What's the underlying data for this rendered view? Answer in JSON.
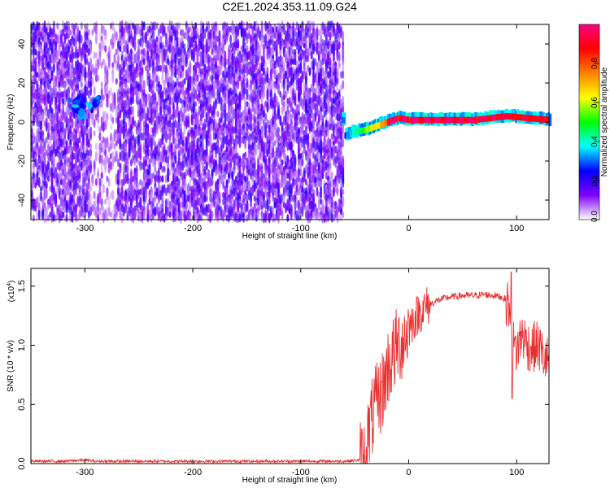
{
  "title": "C2E1.2024.353.11.09.G24",
  "chart_data": [
    {
      "type": "heatmap",
      "title": "C2E1.2024.353.11.09.G24",
      "xlabel": "Height of straight line (km)",
      "ylabel": "Frequency (Hz)",
      "xlim": [
        -350,
        130
      ],
      "ylim": [
        -50,
        50
      ],
      "xticks": [
        -300,
        -200,
        -100,
        0,
        100
      ],
      "yticks": [
        -40,
        -20,
        0,
        20,
        40
      ],
      "xtick_labels": [
        "-300",
        "-200",
        "-100",
        "0",
        "100"
      ],
      "ytick_labels": [
        "-40",
        "-20",
        "0",
        "20",
        "40"
      ],
      "colorbar": {
        "label": "Normalized spectral amplitude",
        "range": [
          0,
          1
        ],
        "ticks": [
          0.0,
          0.2,
          0.4,
          0.6,
          0.8
        ],
        "tick_labels": [
          "0.0",
          "0.2",
          "0.4",
          "0.6",
          "0.8"
        ],
        "colormap": [
          "#ffffff",
          "#8000ff",
          "#0000ff",
          "#00ffff",
          "#00ff00",
          "#ffff00",
          "#ff8000",
          "#ff0000",
          "#ff0080"
        ]
      },
      "features": {
        "noise_region_x": [
          -350,
          -60
        ],
        "blob": {
          "x": -300,
          "y": 8,
          "level": 0.3
        },
        "signal_track": [
          [
            -60,
            -7
          ],
          [
            -50,
            -5
          ],
          [
            -40,
            -4
          ],
          [
            -30,
            -2
          ],
          [
            -20,
            0
          ],
          [
            -10,
            2
          ],
          [
            0,
            1
          ],
          [
            10,
            1
          ],
          [
            30,
            1
          ],
          [
            60,
            1
          ],
          [
            90,
            3
          ],
          [
            130,
            1
          ]
        ]
      },
      "grid": false
    },
    {
      "type": "line",
      "xlabel": "Height of straight line (km)",
      "ylabel": "SNR (10 * v/v)",
      "y_multiplier": "(x10",
      "y_multiplier_exp": "4",
      "y_multiplier_close": ")",
      "xlim": [
        -350,
        130
      ],
      "ylim": [
        0,
        1.65
      ],
      "xticks": [
        -300,
        -200,
        -100,
        0,
        100
      ],
      "yticks": [
        0,
        0.5,
        1.0,
        1.5
      ],
      "xtick_labels": [
        "-300",
        "-200",
        "-100",
        "0",
        "100"
      ],
      "ytick_labels": [
        "0.0",
        "0.5",
        "1.0",
        "1.5"
      ],
      "color": "#e83030",
      "series": [
        {
          "x": [
            -350,
            -320,
            -300,
            -290,
            -250,
            -200,
            -150,
            -100,
            -60,
            -45,
            -40,
            -38,
            -35,
            -30,
            -25,
            -22,
            -20,
            -15,
            -10,
            -5,
            0,
            5,
            10,
            20,
            30,
            40,
            50,
            60,
            70,
            80,
            85,
            90,
            93,
            95,
            97,
            100,
            105,
            110,
            115,
            120,
            125,
            130
          ],
          "y": [
            0.02,
            0.02,
            0.03,
            0.02,
            0.02,
            0.02,
            0.02,
            0.02,
            0.02,
            0.03,
            0.05,
            0.2,
            0.35,
            0.5,
            0.6,
            0.7,
            0.8,
            0.9,
            1.0,
            1.05,
            1.15,
            1.22,
            1.28,
            1.35,
            1.39,
            1.41,
            1.42,
            1.42,
            1.43,
            1.42,
            1.41,
            1.39,
            1.35,
            1.0,
            1.0,
            0.95,
            1.1,
            1.0,
            0.98,
            1.0,
            0.9,
            0.85
          ]
        }
      ]
    }
  ]
}
